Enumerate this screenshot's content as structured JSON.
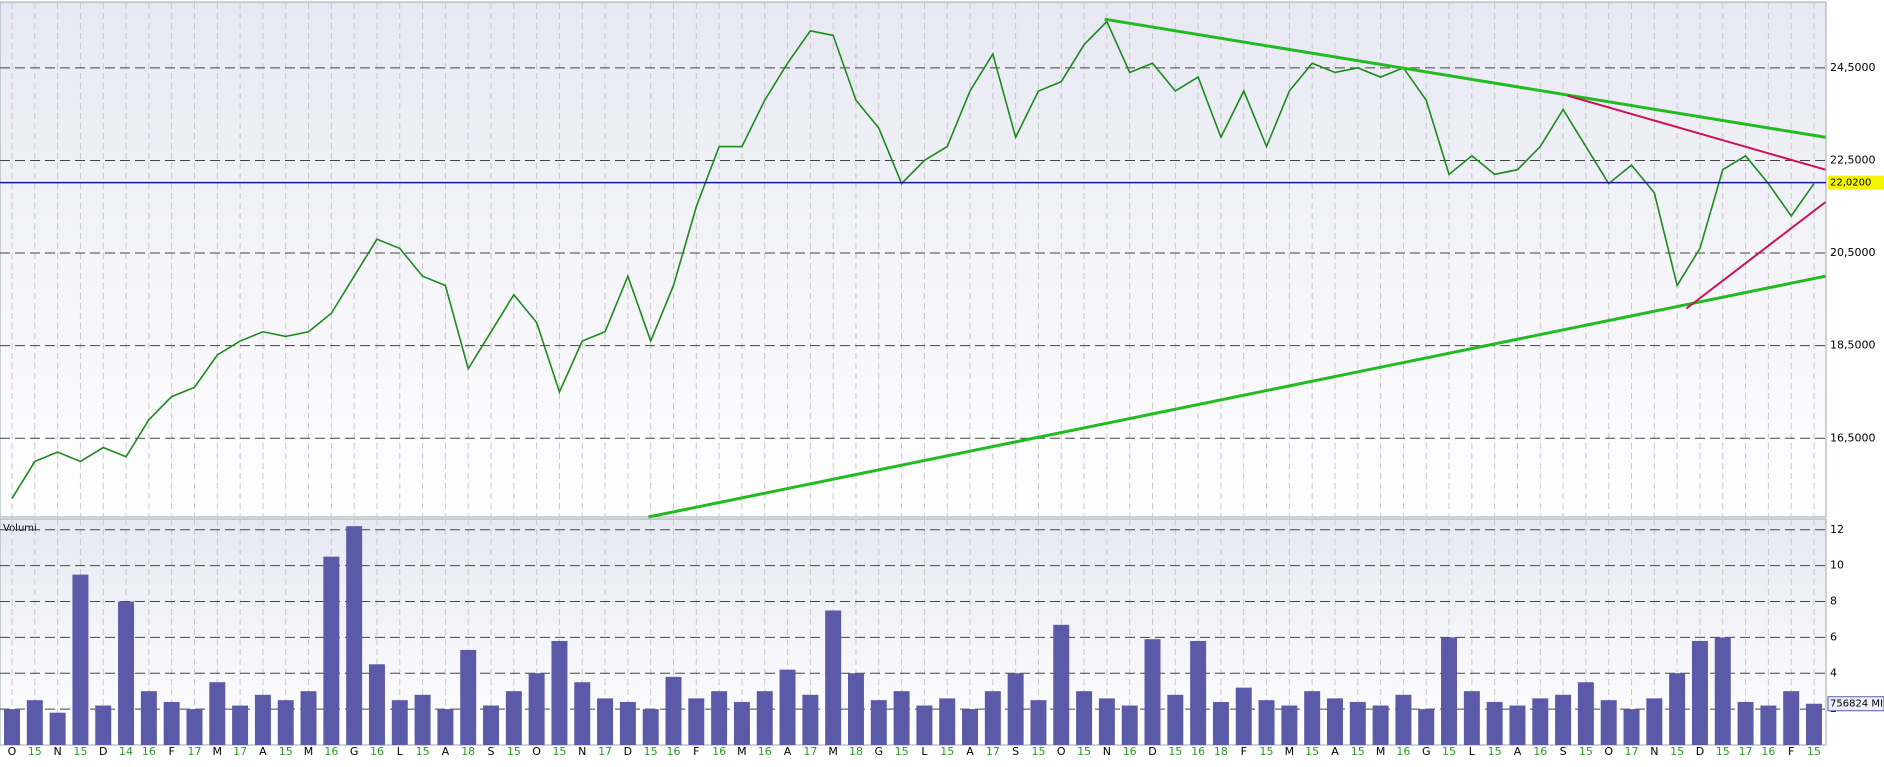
{
  "chart_data": [
    {
      "type": "line",
      "categories": [
        "O",
        "15",
        "N",
        "15",
        "D",
        "14",
        "16",
        "F",
        "17",
        "M",
        "17",
        "A",
        "15",
        "M",
        "16",
        "G",
        "16",
        "L",
        "15",
        "A",
        "18",
        "S",
        "15",
        "O",
        "15",
        "N",
        "17",
        "D",
        "15",
        "16",
        "F",
        "16",
        "M",
        "16",
        "A",
        "17",
        "M",
        "18",
        "G",
        "15",
        "L",
        "15",
        "A",
        "17",
        "S",
        "15",
        "O",
        "15",
        "N",
        "16",
        "D",
        "15",
        "16",
        "18",
        "F",
        "15",
        "M",
        "15",
        "A",
        "15",
        "M",
        "16",
        "G",
        "15",
        "L",
        "15",
        "A",
        "16",
        "S",
        "15",
        "O",
        "17",
        "N",
        "15",
        "D",
        "15",
        "17",
        "16",
        "F",
        "15"
      ],
      "series": [
        {
          "color": "#1a8c1a",
          "values": [
            15.2,
            16.0,
            16.2,
            16.0,
            16.3,
            16.1,
            16.9,
            17.4,
            17.6,
            18.3,
            18.6,
            18.8,
            18.7,
            18.8,
            19.2,
            20.0,
            20.8,
            20.6,
            20.0,
            19.8,
            18.0,
            18.8,
            19.6,
            19.0,
            17.5,
            18.6,
            18.8,
            20.0,
            18.6,
            19.8,
            21.5,
            22.8,
            22.8,
            23.8,
            24.6,
            25.3,
            25.2,
            23.8,
            23.2,
            22.0,
            22.5,
            22.8,
            24.0,
            24.8,
            23.0,
            24.0,
            24.2,
            25.0,
            25.5,
            24.4,
            24.6,
            24.0,
            24.3,
            23.0,
            24.0,
            22.8,
            24.0,
            24.6,
            24.4,
            24.5,
            24.3,
            24.5,
            23.8,
            22.2,
            22.6,
            22.2,
            22.3,
            22.8,
            23.6,
            22.8,
            22.0,
            22.4,
            21.8,
            19.8,
            20.6,
            22.3,
            22.6,
            22.0,
            21.3,
            22.0
          ]
        }
      ],
      "trendlines": [
        {
          "color": "#22bb22",
          "x": [
            47.9,
            79.5
          ],
          "y": [
            25.55,
            23.0
          ]
        },
        {
          "color": "#22bb22",
          "x": [
            27.9,
            79.5
          ],
          "y": [
            14.8,
            20.0
          ]
        },
        {
          "color": "#cc1155",
          "x": [
            68.2,
            79.5
          ],
          "y": [
            23.9,
            22.3
          ]
        },
        {
          "color": "#cc1155",
          "x": [
            73.4,
            79.5
          ],
          "y": [
            19.3,
            21.6
          ]
        }
      ],
      "last_value": {
        "value": 22.02,
        "label": "22,0200",
        "color": "#1a1a8c"
      },
      "ylim": [
        14.8,
        25.9
      ],
      "yticks": [
        {
          "value": 16.5,
          "label": "16,5000"
        },
        {
          "value": 18.5,
          "label": "18,5000"
        },
        {
          "value": 20.5,
          "label": "20,5000"
        },
        {
          "value": 22.5,
          "label": "22,5000"
        },
        {
          "value": 24.5,
          "label": "24,5000"
        }
      ],
      "grid": true
    },
    {
      "type": "bar",
      "title": "Volumi",
      "series": [
        {
          "color": "#5a5aa8",
          "values": [
            2.0,
            2.5,
            1.8,
            9.5,
            2.2,
            8.0,
            3.0,
            2.4,
            2.0,
            3.5,
            2.2,
            2.8,
            2.5,
            3.0,
            10.5,
            12.2,
            4.5,
            2.5,
            2.8,
            2.0,
            5.3,
            2.2,
            3.0,
            4.0,
            5.8,
            3.5,
            2.6,
            2.4,
            2.0,
            3.8,
            2.6,
            3.0,
            2.4,
            3.0,
            4.2,
            2.8,
            7.5,
            4.0,
            2.5,
            3.0,
            2.2,
            2.6,
            2.0,
            3.0,
            4.0,
            2.5,
            6.7,
            3.0,
            2.6,
            2.2,
            5.9,
            2.8,
            5.8,
            2.4,
            3.2,
            2.5,
            2.2,
            3.0,
            2.6,
            2.4,
            2.2,
            2.8,
            2.0,
            6.0,
            3.0,
            2.4,
            2.2,
            2.6,
            2.8,
            3.5,
            2.5,
            2.0,
            2.6,
            4.0,
            5.8,
            6.0,
            2.4,
            2.2,
            3.0,
            2.3
          ]
        }
      ],
      "last_value": {
        "value": 2.3,
        "label": "756824 MIL"
      },
      "ylim": [
        0,
        12.6
      ],
      "yticks": [
        2,
        4,
        6,
        8,
        10,
        12
      ],
      "grid": true
    }
  ]
}
